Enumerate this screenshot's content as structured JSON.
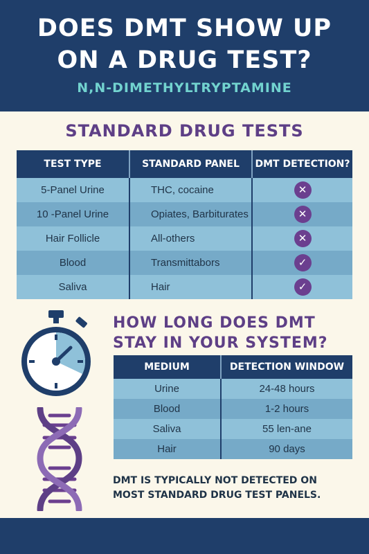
{
  "header": {
    "title_line1": "DOES DMT SHOW UP",
    "title_line2": "ON A DRUG TEST?",
    "subtitle": "N,N-DIMETHYLTRYPTAMINE"
  },
  "standard_tests": {
    "title": "STANDARD DRUG TESTS",
    "columns": [
      "TEST TYPE",
      "STANDARD PANEL",
      "DMT DETECTION?"
    ],
    "rows": [
      {
        "test": "5-Panel Urine",
        "panel": "THC, cocaine",
        "detection": "x",
        "icon": "x-circle-icon"
      },
      {
        "test": "10 -Panel Urine",
        "panel": "Opiates, Barbiturates",
        "detection": "x",
        "icon": "x-circle-icon"
      },
      {
        "test": "Hair Follicle",
        "panel": "All-others",
        "detection": "x",
        "icon": "x-circle-icon"
      },
      {
        "test": "Blood",
        "panel": "Transmittabors",
        "detection": "check",
        "icon": "check-circle-icon"
      },
      {
        "test": "Saliva",
        "panel": "Hair",
        "detection": "check",
        "icon": "check-circle-icon"
      }
    ]
  },
  "detection_window": {
    "title_line1": "HOW LONG DOES DMT",
    "title_line2": "STAY IN YOUR SYSTEM?",
    "columns": [
      "MEDIUM",
      "DETECTION WINDOW"
    ],
    "rows": [
      {
        "medium": "Urine",
        "window": "24-48 hours"
      },
      {
        "medium": "Blood",
        "window": "1-2 hours"
      },
      {
        "medium": "Saliva",
        "window": "55 len-ane"
      },
      {
        "medium": "Hair",
        "window": "90 days"
      }
    ]
  },
  "note": {
    "line1": "DMT IS TYPICALLY NOT DETECTED ON",
    "line2": "MOST STANDARD DRUG TEST PANELS."
  },
  "icons": [
    "stopwatch-icon",
    "dna-icon",
    "x-circle-icon",
    "check-circle-icon"
  ],
  "colors": {
    "navy": "#1f3e6a",
    "purple": "#5e3f86",
    "teal": "#72d3cf",
    "cream": "#fbf7ea",
    "row_light": "#8fc1d9",
    "row_dark": "#76aac8"
  }
}
